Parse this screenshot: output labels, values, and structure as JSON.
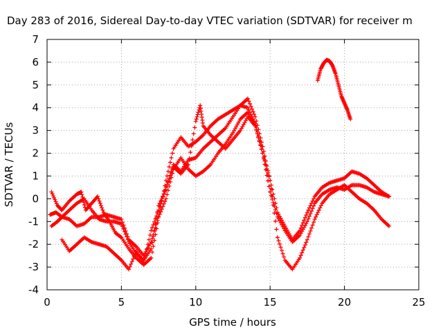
{
  "chart_data": {
    "type": "scatter",
    "title": "Day 283 of 2016, Sidereal Day-to-day VTEC variation (SDTVAR) for receiver m",
    "xlabel": "GPS time / hours",
    "ylabel": "SDTVAR / TECUs",
    "xlim": [
      0,
      25
    ],
    "ylim": [
      -4,
      7
    ],
    "xticks": [
      "0",
      "5",
      "10",
      "15",
      "20",
      "25"
    ],
    "yticks": [
      "-4",
      "-3",
      "-2",
      "-1",
      "0",
      "1",
      "2",
      "3",
      "4",
      "5",
      "6",
      "7"
    ],
    "grid": true,
    "marker": "+",
    "color": "#ff0000",
    "series": [
      {
        "x": [
          0.2,
          0.6,
          1.0,
          1.5,
          2.0,
          2.5,
          3.0,
          3.5,
          4.0,
          4.5,
          5.0,
          5.5,
          6.0,
          6.5,
          7.0,
          7.5,
          8.0,
          8.5,
          9.0,
          9.5,
          10.0,
          10.5,
          11.0,
          11.5,
          12.0,
          12.5,
          13.0,
          13.5,
          14.0,
          14.5,
          15.0,
          15.5,
          16.0,
          16.5,
          17.0,
          17.5,
          18.0,
          18.5,
          19.0,
          19.5,
          20.0,
          20.5,
          21.0,
          21.5,
          22.0,
          22.5,
          23.0
        ],
        "y": [
          -0.7,
          -0.6,
          -0.8,
          -0.9,
          -1.2,
          -1.1,
          -0.8,
          -0.8,
          -0.7,
          -0.8,
          -0.9,
          -1.8,
          -2.1,
          -2.5,
          -1.9,
          -0.8,
          0.0,
          1.3,
          1.8,
          1.3,
          1.0,
          1.2,
          1.5,
          2.0,
          2.4,
          2.9,
          3.5,
          3.8,
          3.2,
          2.0,
          0.3,
          -0.8,
          -1.4,
          -1.9,
          -1.6,
          -1.0,
          -0.2,
          0.2,
          0.4,
          0.5,
          0.4,
          0.6,
          0.6,
          0.5,
          0.3,
          0.2,
          0.1
        ]
      },
      {
        "x": [
          0.3,
          0.7,
          1.0,
          1.5,
          2.0,
          2.5,
          3.0,
          3.5,
          4.0,
          4.5,
          5.0,
          5.5,
          6.0,
          6.5,
          7.0,
          7.5,
          8.0,
          8.5,
          9.0,
          9.5,
          10.0,
          10.5,
          11.0,
          11.5,
          12.0,
          12.5,
          13.0,
          13.5,
          14.0,
          14.5,
          15.0,
          15.5,
          16.0,
          16.5,
          17.0,
          17.5,
          18.0,
          18.5,
          19.0,
          19.5,
          20.0,
          20.5,
          21.0,
          21.5,
          22.0,
          22.5,
          23.0
        ],
        "y": [
          -1.2,
          -1.0,
          -0.8,
          -0.5,
          -0.2,
          0.0,
          -0.5,
          -0.9,
          -1.0,
          -1.0,
          -1.1,
          -1.9,
          -2.4,
          -2.7,
          -2.2,
          -0.3,
          0.4,
          1.5,
          1.2,
          1.7,
          1.8,
          2.2,
          2.5,
          2.8,
          3.1,
          3.6,
          4.1,
          4.4,
          3.6,
          2.3,
          0.8,
          -0.6,
          -1.2,
          -1.8,
          -1.4,
          -0.6,
          0.1,
          0.5,
          0.7,
          0.8,
          0.9,
          1.2,
          1.1,
          0.9,
          0.6,
          0.3,
          0.1
        ]
      },
      {
        "x": [
          0.3,
          0.7,
          1.0,
          1.5,
          2.0,
          2.3,
          2.6,
          3.0,
          3.4,
          3.8,
          4.2,
          4.6,
          5.0,
          5.5,
          6.0,
          6.5,
          7.0,
          7.5,
          8.0,
          8.5,
          9.0,
          9.5,
          10.0,
          10.5,
          11.0,
          11.5,
          12.0,
          12.5,
          13.0,
          13.5,
          14.0,
          14.5,
          15.0
        ],
        "y": [
          0.3,
          -0.3,
          -0.5,
          -0.1,
          0.2,
          0.3,
          -0.5,
          -0.2,
          0.1,
          -0.6,
          -1.0,
          -1.5,
          -1.7,
          -2.2,
          -2.6,
          -2.9,
          -2.6,
          -0.8,
          0.8,
          2.2,
          2.7,
          2.3,
          2.5,
          2.8,
          3.2,
          3.5,
          3.7,
          3.9,
          4.1,
          4.0,
          3.3,
          2.0,
          0.3
        ]
      },
      {
        "x": [
          1.0,
          1.5,
          2.0,
          2.5,
          3.0,
          3.5,
          4.0,
          4.5,
          5.0,
          5.5,
          6.0,
          6.5,
          7.0,
          7.5,
          8.0,
          8.5,
          9.0,
          9.5,
          10.0,
          10.3,
          10.5,
          11.0,
          11.5,
          12.0,
          12.5,
          13.0,
          13.5,
          14.0,
          14.5,
          15.0,
          15.5,
          16.0,
          16.5,
          17.0,
          17.5,
          18.0,
          18.5,
          19.0,
          19.5,
          20.0,
          20.5,
          21.0,
          21.5,
          22.0,
          22.5,
          23.0
        ],
        "y": [
          -1.8,
          -2.3,
          -2.0,
          -1.7,
          -1.9,
          -2.0,
          -2.1,
          -2.4,
          -2.7,
          -3.1,
          -2.3,
          -2.8,
          -1.4,
          -0.5,
          0.5,
          1.4,
          1.1,
          1.5,
          3.4,
          4.1,
          3.2,
          2.8,
          2.5,
          2.2,
          2.6,
          3.0,
          3.6,
          3.2,
          2.0,
          0.8,
          -1.7,
          -2.7,
          -3.1,
          -2.6,
          -1.8,
          -0.9,
          -0.2,
          0.2,
          0.4,
          0.6,
          0.3,
          0.0,
          -0.2,
          -0.5,
          -0.9,
          -1.2
        ]
      },
      {
        "x": [
          18.2,
          18.4,
          18.6,
          18.8,
          19.0,
          19.2,
          19.4,
          19.6,
          19.8,
          20.0,
          20.2,
          20.4
        ],
        "y": [
          5.2,
          5.7,
          5.95,
          6.1,
          6.05,
          5.85,
          5.5,
          5.0,
          4.5,
          4.2,
          3.9,
          3.5
        ]
      }
    ]
  }
}
